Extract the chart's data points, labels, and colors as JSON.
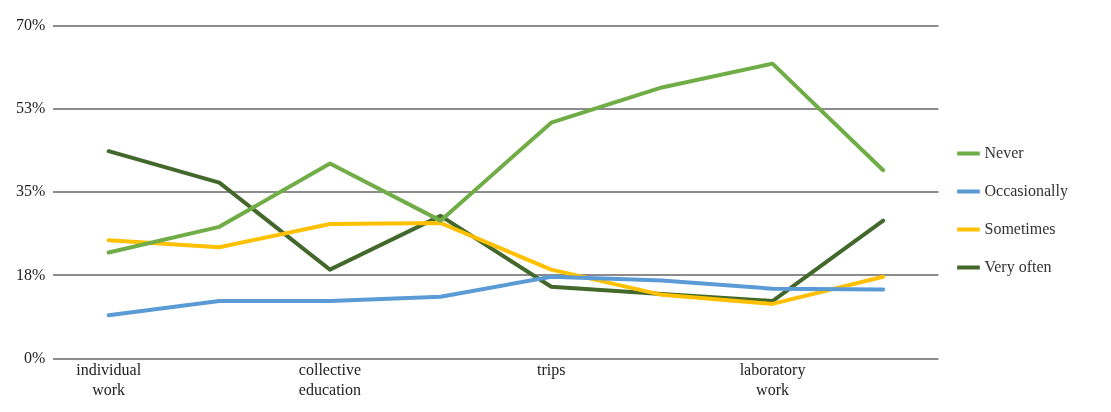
{
  "chart_data": {
    "type": "line",
    "categories": [
      "individual work",
      null,
      "collective education",
      null,
      "trips",
      null,
      "laboratory work",
      null
    ],
    "series": [
      {
        "name": "Never",
        "color": "#70ad47",
        "values": [
          22.3,
          27.7,
          41,
          29,
          49.6,
          57,
          62,
          39.6
        ]
      },
      {
        "name": "Occasionally",
        "color": "#5b9bd5",
        "values": [
          9.1,
          12.1,
          12.1,
          13,
          17.2,
          16.4,
          14.7,
          14.5
        ]
      },
      {
        "name": "Sometimes",
        "color": "#ffc000",
        "values": [
          24.9,
          23.4,
          28.3,
          28.5,
          18.7,
          13.4,
          11.5,
          17.2
        ]
      },
      {
        "name": "Very often",
        "color": "#43682b",
        "values": [
          43.6,
          37,
          18.7,
          30,
          15.1,
          13.6,
          12.1,
          29
        ]
      }
    ],
    "ylim": [
      0,
      70
    ],
    "yticks": [
      {
        "value": 0,
        "label": "0%"
      },
      {
        "value": 17.5,
        "label": "18%"
      },
      {
        "value": 35,
        "label": "35%"
      },
      {
        "value": 52.5,
        "label": "53%"
      },
      {
        "value": 70,
        "label": "70%"
      }
    ],
    "grid": "y",
    "legend": "right",
    "marker": "none",
    "line_style": "solid"
  }
}
